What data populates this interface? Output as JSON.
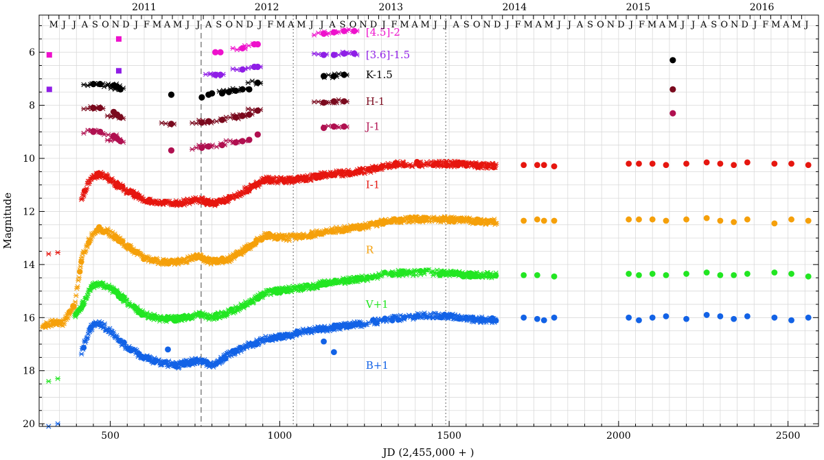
{
  "chart_data": {
    "type": "scatter",
    "title": "",
    "xlabel": "JD (2,455,000 + )",
    "ylabel": "Magnitude",
    "xlim": [
      290,
      2590
    ],
    "ylim": [
      20.1,
      4.6
    ],
    "y_inverted": true,
    "grid": true,
    "x_ticks": [
      500,
      1000,
      1500,
      2000,
      2500
    ],
    "y_ticks": [
      6,
      8,
      10,
      12,
      14,
      16,
      18,
      20
    ],
    "years": [
      {
        "label": "2011",
        "jd": 600
      },
      {
        "label": "2012",
        "jd": 962
      },
      {
        "label": "2013",
        "jd": 1328
      },
      {
        "label": "2014",
        "jd": 1693
      },
      {
        "label": "2015",
        "jd": 2058
      },
      {
        "label": "2016",
        "jd": 2423
      }
    ],
    "months": {
      "labels": [
        "M",
        "J",
        "J",
        "A",
        "S",
        "O",
        "N",
        "D",
        "J",
        "F",
        "M",
        "A",
        "M",
        "J",
        "J",
        "A",
        "S",
        "O",
        "N",
        "D",
        "J",
        "F",
        "M",
        "A",
        "M",
        "J",
        "J",
        "A",
        "S",
        "O",
        "N",
        "D",
        "J",
        "F",
        "M",
        "A",
        "M",
        "J",
        "J",
        "A",
        "S",
        "O",
        "N",
        "D",
        "J",
        "F",
        "M",
        "A",
        "M",
        "J",
        "J",
        "A",
        "S",
        "O",
        "N",
        "D",
        "J",
        "F",
        "M",
        "A",
        "M",
        "J",
        "J",
        "A",
        "S",
        "O",
        "N",
        "D",
        "J",
        "F",
        "M",
        "A",
        "M",
        "J"
      ],
      "first_month_jd": 318,
      "month_length": 30.44
    },
    "vertical_lines": [
      {
        "jd": 768,
        "style": "dashed"
      },
      {
        "jd": 1040,
        "style": "dotted"
      },
      {
        "jd": 1490,
        "style": "dotted"
      }
    ],
    "series": [
      {
        "name": "[4.5]-2",
        "color": "#ee11cc",
        "marker": "circle",
        "points": [
          [
            1130,
            5.3
          ],
          [
            1160,
            5.25
          ],
          [
            1190,
            5.2
          ],
          [
            1220,
            5.2
          ],
          [
            810,
            6.0
          ],
          [
            825,
            6.0
          ],
          [
            890,
            5.85
          ],
          [
            925,
            5.7
          ],
          [
            935,
            5.7
          ]
        ]
      },
      {
        "name": "[3.6]-1.5",
        "color": "#8f1ee6",
        "marker": "circle",
        "points": [
          [
            1130,
            6.1
          ],
          [
            1160,
            6.1
          ],
          [
            1190,
            6.05
          ],
          [
            1220,
            6.05
          ],
          [
            810,
            6.85
          ],
          [
            825,
            6.85
          ],
          [
            890,
            6.65
          ],
          [
            925,
            6.55
          ],
          [
            935,
            6.55
          ]
        ]
      },
      {
        "name": "K-1.5",
        "color": "#000000",
        "marker": "circle",
        "points": [
          [
            450,
            7.2
          ],
          [
            470,
            7.2
          ],
          [
            510,
            7.25
          ],
          [
            520,
            7.3
          ],
          [
            530,
            7.4
          ],
          [
            680,
            7.6
          ],
          [
            770,
            7.7
          ],
          [
            790,
            7.6
          ],
          [
            800,
            7.55
          ],
          [
            830,
            7.55
          ],
          [
            850,
            7.5
          ],
          [
            870,
            7.45
          ],
          [
            890,
            7.4
          ],
          [
            910,
            7.4
          ],
          [
            935,
            7.15
          ],
          [
            1130,
            6.9
          ],
          [
            1160,
            6.9
          ],
          [
            1190,
            6.85
          ],
          [
            2160,
            6.3
          ]
        ]
      },
      {
        "name": "H-1",
        "color": "#7a0a1e",
        "marker": "circle",
        "points": [
          [
            450,
            8.1
          ],
          [
            470,
            8.1
          ],
          [
            510,
            8.25
          ],
          [
            520,
            8.35
          ],
          [
            530,
            8.45
          ],
          [
            680,
            8.7
          ],
          [
            770,
            8.65
          ],
          [
            790,
            8.6
          ],
          [
            830,
            8.55
          ],
          [
            870,
            8.45
          ],
          [
            890,
            8.4
          ],
          [
            910,
            8.35
          ],
          [
            935,
            8.2
          ],
          [
            1130,
            7.9
          ],
          [
            1160,
            7.85
          ],
          [
            1190,
            7.85
          ],
          [
            2160,
            7.4
          ]
        ]
      },
      {
        "name": "J-1",
        "color": "#b01050",
        "marker": "circle",
        "points": [
          [
            450,
            9.0
          ],
          [
            470,
            9.0
          ],
          [
            510,
            9.15
          ],
          [
            520,
            9.25
          ],
          [
            530,
            9.35
          ],
          [
            680,
            9.7
          ],
          [
            770,
            9.6
          ],
          [
            790,
            9.55
          ],
          [
            830,
            9.5
          ],
          [
            870,
            9.4
          ],
          [
            890,
            9.35
          ],
          [
            910,
            9.3
          ],
          [
            935,
            9.1
          ],
          [
            1130,
            8.85
          ],
          [
            1160,
            8.8
          ],
          [
            1190,
            8.8
          ],
          [
            2160,
            8.3
          ]
        ]
      },
      {
        "name": "I-1",
        "color": "#e6160f",
        "marker": "mixed",
        "curve": [
          [
            415,
            11.5
          ],
          [
            440,
            10.8
          ],
          [
            465,
            10.6
          ],
          [
            490,
            10.7
          ],
          [
            520,
            11.0
          ],
          [
            560,
            11.3
          ],
          [
            600,
            11.55
          ],
          [
            650,
            11.7
          ],
          [
            700,
            11.7
          ],
          [
            760,
            11.55
          ],
          [
            800,
            11.7
          ],
          [
            850,
            11.55
          ],
          [
            900,
            11.2
          ],
          [
            960,
            10.8
          ],
          [
            1020,
            10.85
          ],
          [
            1080,
            10.75
          ],
          [
            1140,
            10.6
          ],
          [
            1200,
            10.55
          ],
          [
            1260,
            10.45
          ],
          [
            1320,
            10.25
          ],
          [
            1380,
            10.2
          ],
          [
            1440,
            10.2
          ],
          [
            1500,
            10.2
          ],
          [
            1560,
            10.25
          ],
          [
            1640,
            10.3
          ]
        ],
        "dots": [
          [
            1720,
            10.25
          ],
          [
            1760,
            10.25
          ],
          [
            1780,
            10.25
          ],
          [
            1810,
            10.3
          ],
          [
            2030,
            10.2
          ],
          [
            2060,
            10.2
          ],
          [
            2100,
            10.2
          ],
          [
            2140,
            10.25
          ],
          [
            2200,
            10.2
          ],
          [
            2260,
            10.15
          ],
          [
            2300,
            10.2
          ],
          [
            2340,
            10.25
          ],
          [
            2380,
            10.15
          ],
          [
            2460,
            10.2
          ],
          [
            2510,
            10.2
          ],
          [
            2560,
            10.25
          ]
        ]
      },
      {
        "name": "R",
        "color": "#f5a00a",
        "marker": "mixed",
        "curve": [
          [
            300,
            16.3
          ],
          [
            330,
            16.2
          ],
          [
            360,
            16.2
          ],
          [
            395,
            15.5
          ],
          [
            415,
            13.8
          ],
          [
            440,
            13.0
          ],
          [
            465,
            12.65
          ],
          [
            490,
            12.75
          ],
          [
            520,
            13.0
          ],
          [
            560,
            13.4
          ],
          [
            600,
            13.75
          ],
          [
            650,
            13.9
          ],
          [
            700,
            13.9
          ],
          [
            760,
            13.7
          ],
          [
            800,
            13.9
          ],
          [
            850,
            13.8
          ],
          [
            900,
            13.4
          ],
          [
            960,
            12.9
          ],
          [
            1020,
            13.0
          ],
          [
            1080,
            12.9
          ],
          [
            1140,
            12.75
          ],
          [
            1200,
            12.65
          ],
          [
            1260,
            12.55
          ],
          [
            1320,
            12.35
          ],
          [
            1380,
            12.3
          ],
          [
            1440,
            12.3
          ],
          [
            1500,
            12.3
          ],
          [
            1560,
            12.35
          ],
          [
            1640,
            12.4
          ]
        ],
        "dots": [
          [
            1720,
            12.35
          ],
          [
            1760,
            12.3
          ],
          [
            1780,
            12.35
          ],
          [
            1810,
            12.35
          ],
          [
            2030,
            12.3
          ],
          [
            2060,
            12.3
          ],
          [
            2100,
            12.3
          ],
          [
            2140,
            12.35
          ],
          [
            2200,
            12.3
          ],
          [
            2260,
            12.25
          ],
          [
            2300,
            12.35
          ],
          [
            2340,
            12.4
          ],
          [
            2380,
            12.3
          ],
          [
            2460,
            12.45
          ],
          [
            2510,
            12.3
          ],
          [
            2560,
            12.35
          ]
        ]
      },
      {
        "name": "V+1",
        "color": "#22e622",
        "marker": "mixed",
        "curve": [
          [
            395,
            16.0
          ],
          [
            415,
            15.6
          ],
          [
            440,
            14.9
          ],
          [
            465,
            14.7
          ],
          [
            490,
            14.8
          ],
          [
            520,
            15.1
          ],
          [
            560,
            15.5
          ],
          [
            600,
            15.9
          ],
          [
            650,
            16.05
          ],
          [
            700,
            16.05
          ],
          [
            760,
            15.9
          ],
          [
            800,
            16.0
          ],
          [
            850,
            15.8
          ],
          [
            900,
            15.5
          ],
          [
            960,
            15.05
          ],
          [
            1020,
            14.95
          ],
          [
            1080,
            14.85
          ],
          [
            1140,
            14.7
          ],
          [
            1200,
            14.6
          ],
          [
            1260,
            14.5
          ],
          [
            1320,
            14.35
          ],
          [
            1380,
            14.3
          ],
          [
            1440,
            14.3
          ],
          [
            1500,
            14.35
          ],
          [
            1560,
            14.4
          ],
          [
            1640,
            14.4
          ]
        ],
        "dots": [
          [
            1720,
            14.4
          ],
          [
            1760,
            14.4
          ],
          [
            1810,
            14.45
          ],
          [
            2030,
            14.35
          ],
          [
            2060,
            14.4
          ],
          [
            2100,
            14.35
          ],
          [
            2140,
            14.4
          ],
          [
            2200,
            14.35
          ],
          [
            2260,
            14.3
          ],
          [
            2300,
            14.4
          ],
          [
            2340,
            14.4
          ],
          [
            2380,
            14.35
          ],
          [
            2460,
            14.3
          ],
          [
            2510,
            14.35
          ],
          [
            2560,
            14.45
          ]
        ]
      },
      {
        "name": "B+1",
        "color": "#1262e6",
        "marker": "mixed",
        "curve": [
          [
            415,
            17.3
          ],
          [
            440,
            16.4
          ],
          [
            465,
            16.2
          ],
          [
            490,
            16.4
          ],
          [
            520,
            16.8
          ],
          [
            560,
            17.2
          ],
          [
            600,
            17.5
          ],
          [
            650,
            17.7
          ],
          [
            700,
            17.8
          ],
          [
            760,
            17.6
          ],
          [
            800,
            17.8
          ],
          [
            850,
            17.4
          ],
          [
            900,
            17.1
          ],
          [
            960,
            16.8
          ],
          [
            1020,
            16.7
          ],
          [
            1080,
            16.5
          ],
          [
            1140,
            16.4
          ],
          [
            1200,
            16.3
          ],
          [
            1260,
            16.2
          ],
          [
            1320,
            16.05
          ],
          [
            1380,
            16.0
          ],
          [
            1440,
            15.9
          ],
          [
            1500,
            15.95
          ],
          [
            1560,
            16.05
          ],
          [
            1640,
            16.1
          ]
        ],
        "dots": [
          [
            1720,
            16.0
          ],
          [
            1760,
            16.05
          ],
          [
            1780,
            16.1
          ],
          [
            1810,
            16.0
          ],
          [
            2030,
            16.0
          ],
          [
            2060,
            16.1
          ],
          [
            2100,
            16.0
          ],
          [
            2140,
            15.95
          ],
          [
            2200,
            16.05
          ],
          [
            2260,
            15.9
          ],
          [
            2300,
            15.95
          ],
          [
            2340,
            16.05
          ],
          [
            2380,
            15.95
          ],
          [
            2460,
            16.0
          ],
          [
            2510,
            16.1
          ],
          [
            2560,
            16.0
          ],
          [
            1160,
            17.3
          ],
          [
            1130,
            16.9
          ],
          [
            670,
            17.2
          ]
        ]
      }
    ],
    "early_points": [
      {
        "x": 320,
        "y": 6.1,
        "color": "#ee11cc",
        "marker": "square"
      },
      {
        "x": 320,
        "y": 7.4,
        "color": "#8f1ee6",
        "marker": "square"
      },
      {
        "x": 525,
        "y": 5.5,
        "color": "#ee11cc",
        "marker": "square"
      },
      {
        "x": 525,
        "y": 6.7,
        "color": "#8f1ee6",
        "marker": "square"
      },
      {
        "x": 318,
        "y": 13.6,
        "color": "#e6160f",
        "marker": "cross"
      },
      {
        "x": 345,
        "y": 13.55,
        "color": "#e6160f",
        "marker": "cross"
      },
      {
        "x": 318,
        "y": 18.4,
        "color": "#22e622",
        "marker": "cross"
      },
      {
        "x": 345,
        "y": 18.3,
        "color": "#22e622",
        "marker": "cross"
      },
      {
        "x": 318,
        "y": 20.1,
        "color": "#1262e6",
        "marker": "cross"
      },
      {
        "x": 345,
        "y": 20.0,
        "color": "#1262e6",
        "marker": "cross"
      }
    ],
    "labels": [
      {
        "text": "[4.5]-2",
        "x": 1250,
        "y": 5.25,
        "color": "#ee11cc"
      },
      {
        "text": "[3.6]-1.5",
        "x": 1250,
        "y": 6.1,
        "color": "#8f1ee6"
      },
      {
        "text": "K-1.5",
        "x": 1250,
        "y": 6.85,
        "color": "#000000"
      },
      {
        "text": "H-1",
        "x": 1250,
        "y": 7.85,
        "color": "#7a0a1e"
      },
      {
        "text": "J-1",
        "x": 1250,
        "y": 8.8,
        "color": "#b01050"
      },
      {
        "text": "I-1",
        "x": 1250,
        "y": 11.0,
        "color": "#e6160f"
      },
      {
        "text": "R",
        "x": 1250,
        "y": 13.45,
        "color": "#f5a00a"
      },
      {
        "text": "V+1",
        "x": 1250,
        "y": 15.5,
        "color": "#22e622"
      },
      {
        "text": "B+1",
        "x": 1250,
        "y": 17.8,
        "color": "#1262e6"
      }
    ]
  }
}
